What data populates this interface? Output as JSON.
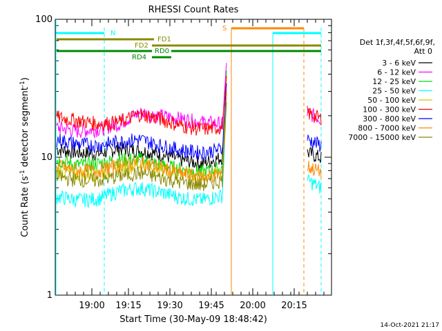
{
  "chart_data": {
    "type": "line",
    "title": "RHESSI Count Rates",
    "xlabel": "Start Time (30-May-09 18:48:42)",
    "ylabel_main": "Count Rate (s",
    "ylabel_sup1": "-1",
    "ylabel_mid": " detector segment",
    "ylabel_sup2": "-1",
    "ylabel_end": ")",
    "yscale": "log",
    "ylim": [
      1,
      100
    ],
    "xlim": [
      "18:48:42",
      "21:00:00"
    ],
    "y_ticks": [
      "1",
      "10",
      "100"
    ],
    "x_ticks": [
      "19:00",
      "19:15",
      "19:30",
      "19:45",
      "20:00",
      "20:15"
    ],
    "legend": {
      "header1": "Det 1f,3f,4f,5f,6f,9f,",
      "header2": "Att 0",
      "placement": "right"
    },
    "series": [
      {
        "name": "3 - 6 keV",
        "color": "#000000",
        "values": [
          11.5,
          10.8,
          10.6,
          11.6,
          11.2,
          10.5,
          9.6,
          9.0,
          10.0,
          30,
          0,
          0,
          0,
          10.8,
          9.9
        ]
      },
      {
        "name": "6 - 12 keV",
        "color": "#ff00ff",
        "values": [
          16.5,
          15.5,
          16.0,
          17.5,
          21.0,
          20.0,
          19.0,
          18.0,
          17.5,
          48,
          0,
          0,
          0,
          21,
          19
        ]
      },
      {
        "name": "12 - 25 keV",
        "color": "#00dd00",
        "values": [
          9.6,
          8.8,
          9.0,
          9.6,
          9.7,
          8.8,
          8.2,
          7.8,
          8.3,
          42,
          0,
          0,
          0,
          0,
          0
        ]
      },
      {
        "name": "25 - 50 keV",
        "color": "#00ffff",
        "values": [
          5.2,
          4.9,
          5.0,
          5.7,
          6.0,
          5.6,
          5.1,
          4.9,
          5.3,
          28,
          0,
          0,
          0,
          6.8,
          6.0
        ]
      },
      {
        "name": "50 - 100 keV",
        "color": "#cccc00",
        "values": [
          8.0,
          7.5,
          7.6,
          8.3,
          8.8,
          8.2,
          7.6,
          7.2,
          7.8,
          30,
          0,
          0,
          0,
          0,
          0
        ]
      },
      {
        "name": "100 - 300 keV",
        "color": "#ff0000",
        "values": [
          19.5,
          18.5,
          17.5,
          18.0,
          20.5,
          19.0,
          17.0,
          16.0,
          16.5,
          38,
          0,
          0,
          0,
          21,
          19
        ]
      },
      {
        "name": "300 - 800 keV",
        "color": "#0000ff",
        "values": [
          13.5,
          12.5,
          12.2,
          13.0,
          13.5,
          12.2,
          11.3,
          10.8,
          11.5,
          35,
          0,
          0,
          0,
          13.5,
          12.2
        ]
      },
      {
        "name": "800 - 7000 keV",
        "color": "#ff8800",
        "values": [
          8.6,
          8.0,
          8.0,
          8.8,
          9.2,
          8.4,
          7.6,
          7.2,
          7.6,
          30,
          0,
          0,
          0,
          8.6,
          7.8
        ]
      },
      {
        "name": "7000 - 15000 keV",
        "color": "#888800",
        "values": [
          7.2,
          6.9,
          6.8,
          7.3,
          7.7,
          7.1,
          6.6,
          6.3,
          6.8,
          26,
          0,
          0,
          0,
          0,
          0
        ]
      }
    ],
    "annotations": [
      {
        "label": "N",
        "color": "#00ffff"
      },
      {
        "label": "S",
        "color": "#ff8800"
      },
      {
        "label": "FD1",
        "color": "#888800"
      },
      {
        "label": "FD2",
        "color": "#888800"
      },
      {
        "label": "RD0",
        "color": "#008800"
      },
      {
        "label": "RD4",
        "color": "#008800"
      }
    ],
    "grid": false
  },
  "footer": {
    "timestamp": "14-Oct-2021 21:17"
  }
}
